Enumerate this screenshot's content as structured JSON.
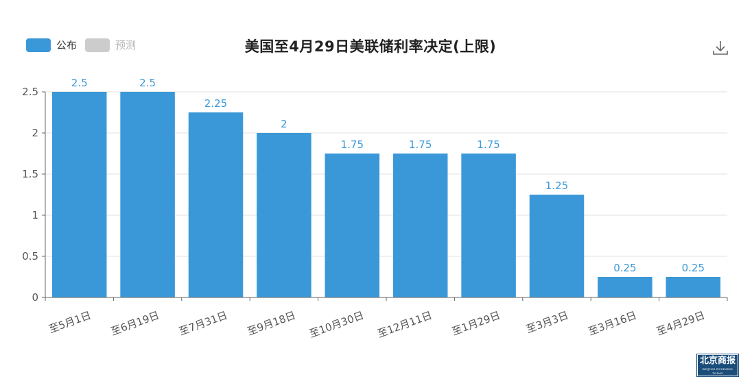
{
  "legend": {
    "published": {
      "label": "公布",
      "color": "#3a98d8"
    },
    "forecast": {
      "label": "预测",
      "color": "#cccccc"
    }
  },
  "watermark": {
    "main": "北京商报",
    "sub": "BEIJING BUSINESS TODAY"
  },
  "chart_data": {
    "type": "bar",
    "title": "美国至4月29日美联储利率决定(上限)",
    "categories": [
      "至5月1日",
      "至6月19日",
      "至7月31日",
      "至9月18日",
      "至10月30日",
      "至12月11日",
      "至1月29日",
      "至3月3日",
      "至3月16日",
      "至4月29日"
    ],
    "series": [
      {
        "name": "公布",
        "values": [
          2.5,
          2.5,
          2.25,
          2,
          1.75,
          1.75,
          1.75,
          1.25,
          0.25,
          0.25
        ]
      }
    ],
    "data_labels": [
      "2.5",
      "2.5",
      "2.25",
      "2",
      "1.75",
      "1.75",
      "1.75",
      "1.25",
      "0.25",
      "0.25"
    ],
    "yticks": [
      "0",
      "0.5",
      "1",
      "1.5",
      "2",
      "2.5"
    ],
    "ylim": [
      0,
      2.5
    ],
    "grid": true,
    "legend_position": "top-left",
    "bar_color": "#3a98d8",
    "label_color": "#3a98d8"
  }
}
